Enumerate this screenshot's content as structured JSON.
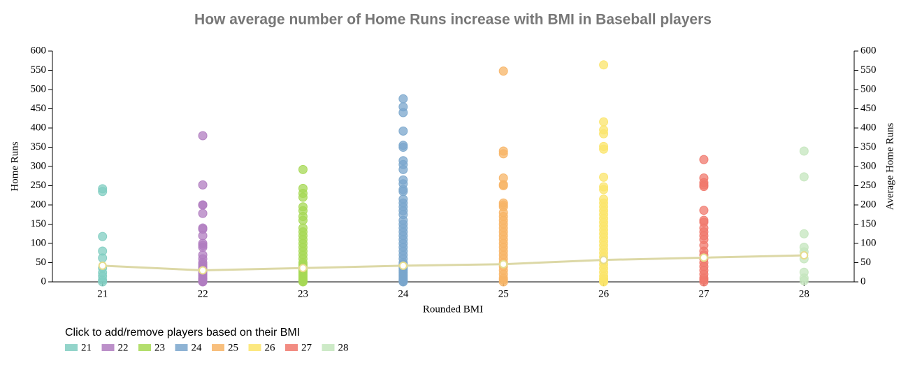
{
  "chart_data": {
    "type": "scatter",
    "title": "How average number of Home Runs increase with BMI in Baseball players",
    "x_label": "Rounded BMI",
    "y_label": "Home Runs",
    "y2_label": "Average Home Runs",
    "xlim": [
      20.5,
      28.5
    ],
    "xticks": [
      21,
      22,
      23,
      24,
      25,
      26,
      27,
      28
    ],
    "ylim": [
      0,
      600
    ],
    "yticks": [
      0,
      50,
      100,
      150,
      200,
      250,
      300,
      350,
      400,
      450,
      500,
      550,
      600
    ],
    "y2lim": [
      0,
      600
    ],
    "y2ticks": [
      0,
      50,
      100,
      150,
      200,
      250,
      300,
      350,
      400,
      450,
      500,
      550,
      600
    ],
    "grid": false,
    "legend_title": "Click to add/remove players based on their BMI",
    "legend_position": "bottom-left",
    "series": [
      {
        "name": "21",
        "x": 21,
        "color": "#80cdc1",
        "values": [
          242,
          235,
          118,
          80,
          62,
          36,
          24,
          15,
          5,
          0
        ]
      },
      {
        "name": "22",
        "x": 22,
        "color": "#b07cc0",
        "values": [
          380,
          252,
          200,
          200,
          178,
          140,
          137,
          120,
          100,
          95,
          90,
          70,
          60,
          50,
          45,
          40,
          35,
          30,
          25,
          20,
          15,
          10,
          8,
          5,
          3,
          1,
          0
        ]
      },
      {
        "name": "23",
        "x": 23,
        "color": "#a6d854",
        "values": [
          292,
          243,
          230,
          220,
          195,
          185,
          170,
          160,
          140,
          130,
          120,
          110,
          100,
          90,
          80,
          70,
          60,
          50,
          45,
          40,
          35,
          30,
          25,
          20,
          15,
          10,
          5,
          2,
          0
        ]
      },
      {
        "name": "24",
        "x": 24,
        "color": "#7aa6cc",
        "values": [
          476,
          455,
          440,
          392,
          355,
          350,
          315,
          305,
          292,
          265,
          255,
          240,
          235,
          215,
          205,
          195,
          185,
          175,
          160,
          150,
          140,
          130,
          120,
          110,
          100,
          90,
          80,
          70,
          60,
          50,
          45,
          40,
          35,
          30,
          25,
          20,
          15,
          10,
          5,
          2,
          0
        ]
      },
      {
        "name": "25",
        "x": 25,
        "color": "#f7b466",
        "values": [
          548,
          340,
          333,
          270,
          253,
          250,
          205,
          200,
          195,
          180,
          170,
          160,
          150,
          140,
          130,
          120,
          110,
          100,
          90,
          80,
          70,
          60,
          50,
          40,
          30,
          20,
          10,
          5,
          0
        ]
      },
      {
        "name": "26",
        "x": 26,
        "color": "#fbe46a",
        "values": [
          564,
          416,
          395,
          385,
          352,
          345,
          272,
          247,
          240,
          215,
          205,
          195,
          185,
          175,
          165,
          155,
          145,
          135,
          125,
          115,
          105,
          95,
          85,
          75,
          65,
          55,
          45,
          35,
          25,
          15,
          8,
          3,
          0
        ]
      },
      {
        "name": "27",
        "x": 27,
        "color": "#f0786c",
        "values": [
          318,
          270,
          258,
          252,
          248,
          186,
          160,
          155,
          140,
          130,
          120,
          110,
          95,
          80,
          70,
          60,
          50,
          40,
          30,
          20,
          10,
          5,
          0
        ]
      },
      {
        "name": "28",
        "x": 28,
        "color": "#c4e6bd",
        "values": [
          340,
          273,
          125,
          90,
          78,
          60,
          25,
          10,
          3
        ]
      }
    ],
    "average_line": {
      "axis": "y2",
      "color": "#dcd8a6",
      "values": [
        42,
        30,
        36,
        42,
        46,
        57,
        63,
        69
      ]
    }
  }
}
